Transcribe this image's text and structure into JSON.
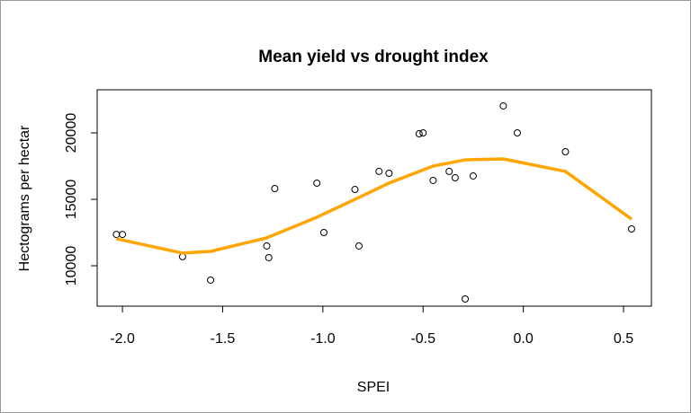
{
  "chart_data": {
    "type": "scatter",
    "title": "Mean yield vs drought index",
    "x_label": "SPEI",
    "y_label": "Hectograms per hectar",
    "x": [
      -2.03,
      -2.0,
      -1.7,
      -1.56,
      -1.28,
      -1.27,
      -1.24,
      -1.03,
      -0.995,
      -0.84,
      -0.82,
      -0.72,
      -0.67,
      -0.52,
      -0.5,
      -0.45,
      -0.37,
      -0.34,
      -0.29,
      -0.25,
      -0.1,
      -0.03,
      0.21,
      0.54
    ],
    "y": [
      12360,
      12360,
      10680,
      8920,
      11490,
      10610,
      15810,
      16220,
      12500,
      15740,
      11490,
      17100,
      16960,
      19930,
      20000,
      16420,
      17100,
      16620,
      7500,
      16760,
      22030,
      20000,
      18580,
      12770
    ],
    "point_color": "#000000",
    "smooth": {
      "color": "#ffa500",
      "x": [
        -2.03,
        -1.7,
        -1.56,
        -1.28,
        -1.03,
        -0.82,
        -0.67,
        -0.45,
        -0.29,
        -0.1,
        0.21,
        0.54
      ],
      "y": [
        12030,
        10950,
        11080,
        12100,
        13650,
        15140,
        16220,
        17500,
        17970,
        18040,
        17100,
        13510
      ]
    },
    "xlim": [
      -2.126,
      0.639
    ],
    "ylim": [
      6959,
      23243
    ],
    "xticks": [
      {
        "value": -2.0,
        "label": "-2.0"
      },
      {
        "value": -1.5,
        "label": "-1.5"
      },
      {
        "value": -1.0,
        "label": "-1.0"
      },
      {
        "value": -0.5,
        "label": "-0.5"
      },
      {
        "value": 0.0,
        "label": "0.0"
      },
      0.5
    ],
    "yticks": [
      10000,
      15000,
      20000
    ]
  }
}
